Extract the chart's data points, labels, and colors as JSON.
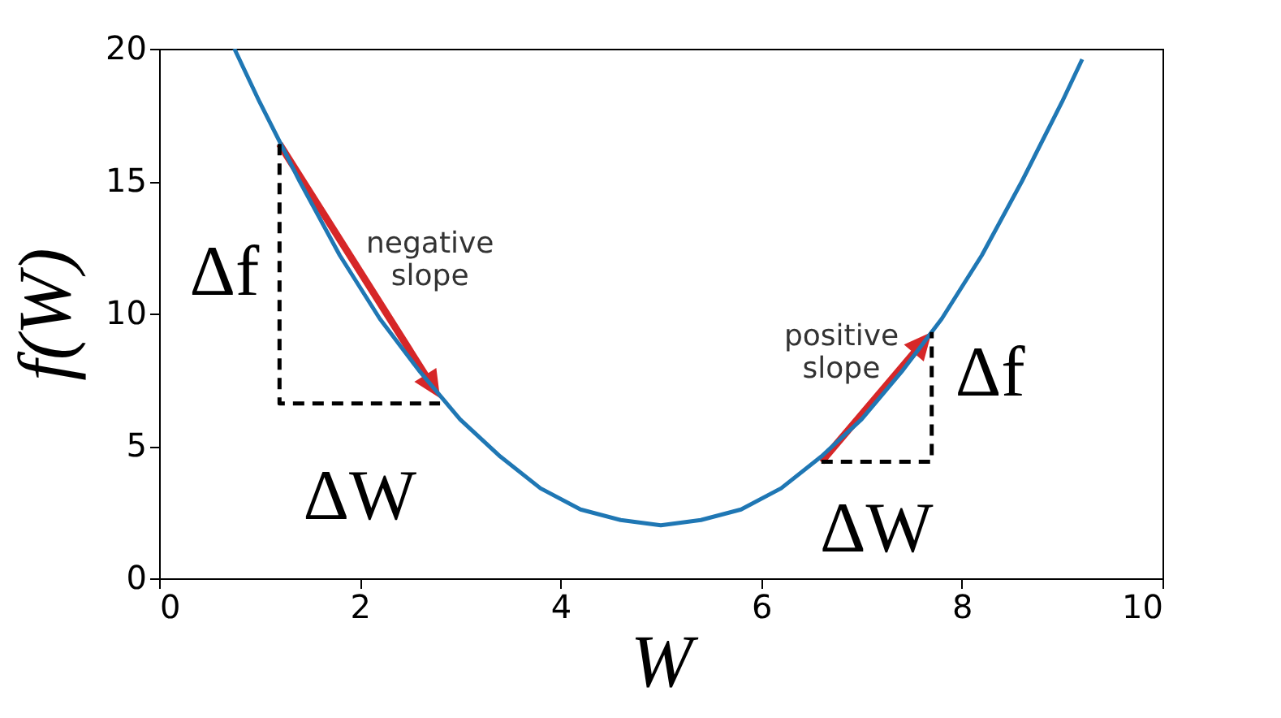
{
  "chart_data": {
    "type": "line",
    "xlabel": "W",
    "ylabel": "f(W)",
    "xlim": [
      0,
      10
    ],
    "xticks": [
      0,
      2,
      4,
      6,
      8,
      10
    ],
    "ylim": [
      0,
      20
    ],
    "yticks": [
      0,
      5,
      10,
      15,
      20
    ],
    "grid": false,
    "series": [
      {
        "color": "#1f77b4",
        "x": [
          0.75,
          1.0,
          1.4,
          1.8,
          2.2,
          2.6,
          3.0,
          3.4,
          3.8,
          4.2,
          4.6,
          5.0,
          5.4,
          5.8,
          6.2,
          6.6,
          7.0,
          7.4,
          7.8,
          8.2,
          8.6,
          9.0,
          9.2
        ],
        "values": [
          20.0,
          18.0,
          15.0,
          12.2,
          9.8,
          7.8,
          6.0,
          4.6,
          3.4,
          2.6,
          2.2,
          2.0,
          2.2,
          2.6,
          3.4,
          4.6,
          6.0,
          7.8,
          9.8,
          12.2,
          15.0,
          18.0,
          19.6
        ]
      },
      {
        "color": "#000000",
        "line_style": "dashed",
        "x": [
          1.2,
          1.2,
          2.8
        ],
        "values": [
          16.4,
          6.6,
          6.6
        ]
      },
      {
        "color": "#000000",
        "line_style": "dashed",
        "x": [
          6.6,
          7.7,
          7.7
        ],
        "values": [
          4.4,
          4.4,
          9.3
        ]
      }
    ],
    "annotations": [
      "negative slope",
      "positive slope",
      {
        "text": "Δf",
        "x": 1.2,
        "y": 11.5
      },
      {
        "text": "Δf",
        "x": 7.7,
        "y": 6.85
      },
      {
        "text": "ΔW",
        "x": 2.0,
        "y": 6.6
      },
      {
        "text": "ΔW",
        "x": 7.15,
        "y": 4.4
      }
    ]
  }
}
